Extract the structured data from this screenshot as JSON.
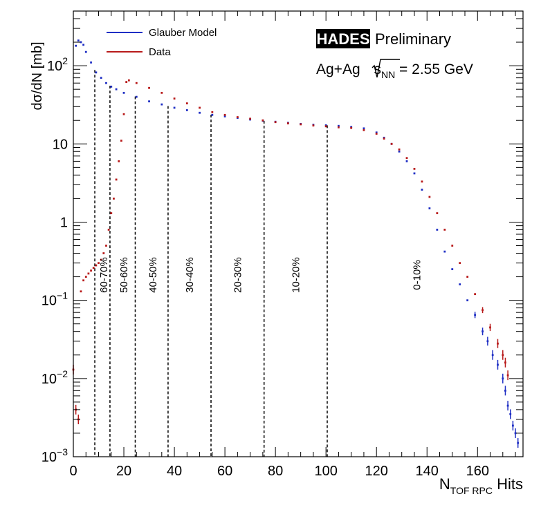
{
  "chart_data": {
    "type": "scatter",
    "xlabel": "N",
    "xlabel_sub": "TOF RPC",
    "xlabel_suffix": " Hits",
    "ylabel": "dσ/dN [mb]",
    "yscale": "log",
    "xlim": [
      0,
      178
    ],
    "ylim": [
      0.001,
      500
    ],
    "x_ticks": [
      0,
      20,
      40,
      60,
      80,
      100,
      120,
      140,
      160
    ],
    "x_tick_labels": [
      "0",
      "20",
      "40",
      "60",
      "80",
      "100",
      "120",
      "140",
      "160"
    ],
    "y_ticks": [
      0.001,
      0.01,
      0.1,
      1,
      10,
      100
    ],
    "y_tick_labels": [
      {
        "base": "10",
        "exp": "−3"
      },
      {
        "base": "10",
        "exp": "−2"
      },
      {
        "base": "10",
        "exp": "−1"
      },
      {
        "base": "1",
        "exp": ""
      },
      {
        "base": "10",
        "exp": ""
      },
      {
        "base": "10",
        "exp": "2"
      }
    ],
    "legend": {
      "placement": "top-left",
      "entries": [
        {
          "label": "Glauber Model",
          "color": "#1f2fc4"
        },
        {
          "label": "Data",
          "color": "#b81a1a"
        }
      ]
    },
    "annotations": {
      "logo": "HADES",
      "preliminary": "Preliminary",
      "system": "Ag+Ag ",
      "energy_var": "s",
      "energy_sub": "NN",
      "energy_value": " = 2.55 GeV"
    },
    "centrality_cuts": [
      8.5,
      14.5,
      24.5,
      37.5,
      54.5,
      75.5,
      100.5
    ],
    "centrality_classes": [
      {
        "label": "60-70%",
        "x": 12
      },
      {
        "label": "50-60%",
        "x": 20
      },
      {
        "label": "40-50%",
        "x": 31.5
      },
      {
        "label": "30-40%",
        "x": 46
      },
      {
        "label": "20-30%",
        "x": 65
      },
      {
        "label": "10-20%",
        "x": 88
      },
      {
        "label": "0-10%",
        "x": 136
      }
    ],
    "series": [
      {
        "name": "Glauber Model",
        "color": "#1f2fc4",
        "points": [
          [
            1,
            180
          ],
          [
            2,
            210
          ],
          [
            3,
            200
          ],
          [
            4,
            185
          ],
          [
            5,
            150
          ],
          [
            7,
            110
          ],
          [
            9,
            82
          ],
          [
            11,
            70
          ],
          [
            13,
            60
          ],
          [
            15,
            54
          ],
          [
            17,
            50
          ],
          [
            20,
            45
          ],
          [
            25,
            40
          ],
          [
            30,
            35
          ],
          [
            35,
            32
          ],
          [
            40,
            29
          ],
          [
            45,
            27
          ],
          [
            50,
            25
          ],
          [
            55,
            23.5
          ],
          [
            60,
            22.5
          ],
          [
            65,
            21.5
          ],
          [
            70,
            20.5
          ],
          [
            75,
            19.8
          ],
          [
            80,
            19.2
          ],
          [
            85,
            18.6
          ],
          [
            90,
            18
          ],
          [
            95,
            17.6
          ],
          [
            100,
            17.3
          ],
          [
            105,
            17
          ],
          [
            110,
            16.5
          ],
          [
            115,
            15.8
          ],
          [
            120,
            14
          ],
          [
            123,
            12
          ],
          [
            126,
            10
          ],
          [
            129,
            8
          ],
          [
            132,
            6
          ],
          [
            135,
            4.2
          ],
          [
            138,
            2.6
          ],
          [
            141,
            1.5
          ],
          [
            144,
            0.8
          ],
          [
            147,
            0.42
          ],
          [
            150,
            0.25
          ],
          [
            153,
            0.16
          ],
          [
            156,
            0.1
          ],
          [
            159,
            0.065
          ],
          [
            162,
            0.04
          ],
          [
            164,
            0.03
          ],
          [
            166,
            0.02
          ],
          [
            168,
            0.015
          ],
          [
            170,
            0.01
          ],
          [
            171,
            0.007
          ],
          [
            172,
            0.0045
          ],
          [
            173,
            0.0035
          ],
          [
            174,
            0.0025
          ],
          [
            175,
            0.002
          ],
          [
            176,
            0.0015
          ]
        ]
      },
      {
        "name": "Data",
        "color": "#b81a1a",
        "points": [
          [
            0,
            0.013
          ],
          [
            1,
            0.004
          ],
          [
            2,
            0.003
          ],
          [
            3,
            0.13
          ],
          [
            4,
            0.18
          ],
          [
            5,
            0.2
          ],
          [
            6,
            0.22
          ],
          [
            7,
            0.24
          ],
          [
            8,
            0.26
          ],
          [
            9,
            0.28
          ],
          [
            10,
            0.3
          ],
          [
            11,
            0.33
          ],
          [
            12,
            0.4
          ],
          [
            13,
            0.5
          ],
          [
            14,
            0.8
          ],
          [
            15,
            1.3
          ],
          [
            16,
            2
          ],
          [
            17,
            3.5
          ],
          [
            18,
            6
          ],
          [
            19,
            11
          ],
          [
            20,
            24
          ],
          [
            21,
            62
          ],
          [
            22,
            65
          ],
          [
            25,
            60
          ],
          [
            30,
            52
          ],
          [
            35,
            45
          ],
          [
            40,
            38
          ],
          [
            45,
            33
          ],
          [
            50,
            29
          ],
          [
            55,
            25.5
          ],
          [
            60,
            23.5
          ],
          [
            65,
            22
          ],
          [
            70,
            21
          ],
          [
            75,
            20
          ],
          [
            80,
            19
          ],
          [
            85,
            18.3
          ],
          [
            90,
            17.8
          ],
          [
            95,
            17.2
          ],
          [
            100,
            16.8
          ],
          [
            105,
            16.3
          ],
          [
            110,
            16
          ],
          [
            115,
            15
          ],
          [
            120,
            13.5
          ],
          [
            123,
            11.7
          ],
          [
            126,
            10
          ],
          [
            129,
            8.5
          ],
          [
            132,
            6.6
          ],
          [
            135,
            4.8
          ],
          [
            138,
            3.3
          ],
          [
            141,
            2.1
          ],
          [
            144,
            1.3
          ],
          [
            147,
            0.8
          ],
          [
            150,
            0.5
          ],
          [
            153,
            0.3
          ],
          [
            156,
            0.2
          ],
          [
            159,
            0.12
          ],
          [
            162,
            0.075
          ],
          [
            165,
            0.045
          ],
          [
            168,
            0.028
          ],
          [
            170,
            0.02
          ],
          [
            171,
            0.016
          ],
          [
            172,
            0.011
          ]
        ]
      }
    ]
  }
}
